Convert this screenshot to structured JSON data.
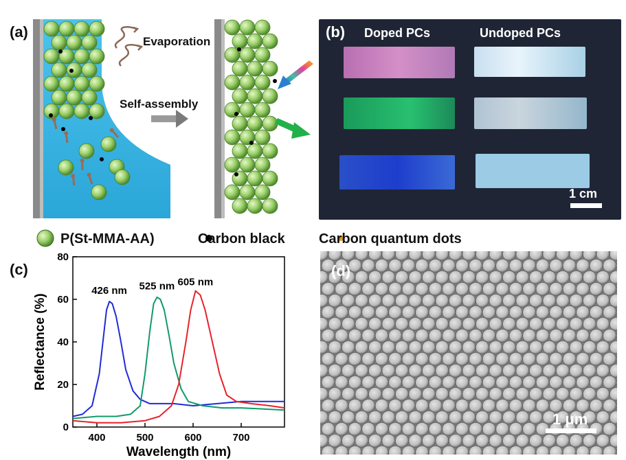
{
  "panels": {
    "a": "(a)",
    "b": "(b)",
    "c": "(c)",
    "d": "(d)"
  },
  "panel_a": {
    "evaporation": "Evaporation",
    "self_assembly": "Self-assembly"
  },
  "panel_b": {
    "doped": "Doped PCs",
    "undoped": "Undoped PCs",
    "scale": "1 cm"
  },
  "legend": {
    "sphere": "P(St-MMA-AA)",
    "carbon_black": "Carbon black",
    "cqd": "Carbon quantum dots"
  },
  "panel_d": {
    "scale": "1 μm"
  },
  "colors": {
    "sphere_green": "#8fc760",
    "water_blue": "#3fb7e3",
    "blue_curve": "#1f2bd6",
    "green_curve": "#0f9a6a",
    "red_curve": "#e8222a"
  },
  "chart_data": {
    "type": "line",
    "xlabel": "Wavelength (nm)",
    "ylabel": "Reflectance (%)",
    "xlim": [
      350,
      790
    ],
    "ylim": [
      0,
      80
    ],
    "xticks": [
      400,
      500,
      600,
      700
    ],
    "yticks": [
      0,
      20,
      40,
      60,
      80
    ],
    "annotations": [
      "426 nm",
      "525 nm",
      "605 nm"
    ],
    "series": [
      {
        "color": "#1f2bd6",
        "x": [
          350,
          370,
          390,
          405,
          415,
          420,
          426,
          432,
          440,
          450,
          460,
          475,
          490,
          510,
          530,
          560,
          600,
          650,
          700,
          790
        ],
        "y": [
          5,
          6,
          10,
          25,
          45,
          55,
          59,
          58,
          52,
          40,
          27,
          17,
          13,
          11,
          11,
          11,
          10,
          11,
          12,
          12
        ]
      },
      {
        "color": "#0f9a6a",
        "x": [
          350,
          400,
          440,
          470,
          490,
          500,
          510,
          518,
          525,
          532,
          540,
          550,
          560,
          575,
          590,
          620,
          660,
          700,
          790
        ],
        "y": [
          4,
          5,
          5,
          6,
          10,
          25,
          45,
          58,
          61,
          60,
          55,
          43,
          30,
          18,
          12,
          10,
          9,
          9,
          8
        ]
      },
      {
        "color": "#e8222a",
        "x": [
          350,
          400,
          450,
          500,
          530,
          555,
          570,
          585,
          595,
          605,
          615,
          625,
          640,
          655,
          670,
          690,
          720,
          760,
          790
        ],
        "y": [
          3,
          2,
          2,
          3,
          5,
          10,
          20,
          40,
          55,
          64,
          62,
          55,
          40,
          25,
          15,
          12,
          11,
          10,
          9
        ]
      }
    ]
  }
}
